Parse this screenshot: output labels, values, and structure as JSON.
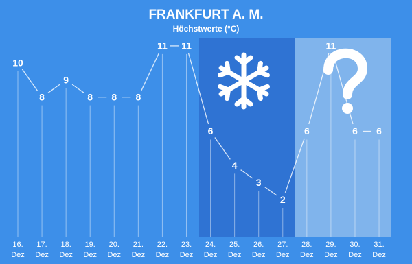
{
  "chart_data": {
    "type": "line",
    "title": "FRANKFURT A. M.",
    "subtitle": "Höchstwerte (°C)",
    "categories": [
      "16. Dez",
      "17. Dez",
      "18. Dez",
      "19. Dez",
      "20. Dez",
      "21. Dez",
      "22. Dez",
      "23. Dez",
      "24. Dez",
      "25. Dez",
      "26. Dez",
      "27. Dez",
      "28. Dez",
      "29. Dez",
      "30. Dez",
      "31. Dez"
    ],
    "values": [
      10,
      8,
      9,
      8,
      8,
      8,
      11,
      11,
      6,
      4,
      3,
      2,
      6,
      11,
      6,
      6
    ],
    "color": "#ffffff",
    "ylim": [
      0,
      12
    ]
  }
}
